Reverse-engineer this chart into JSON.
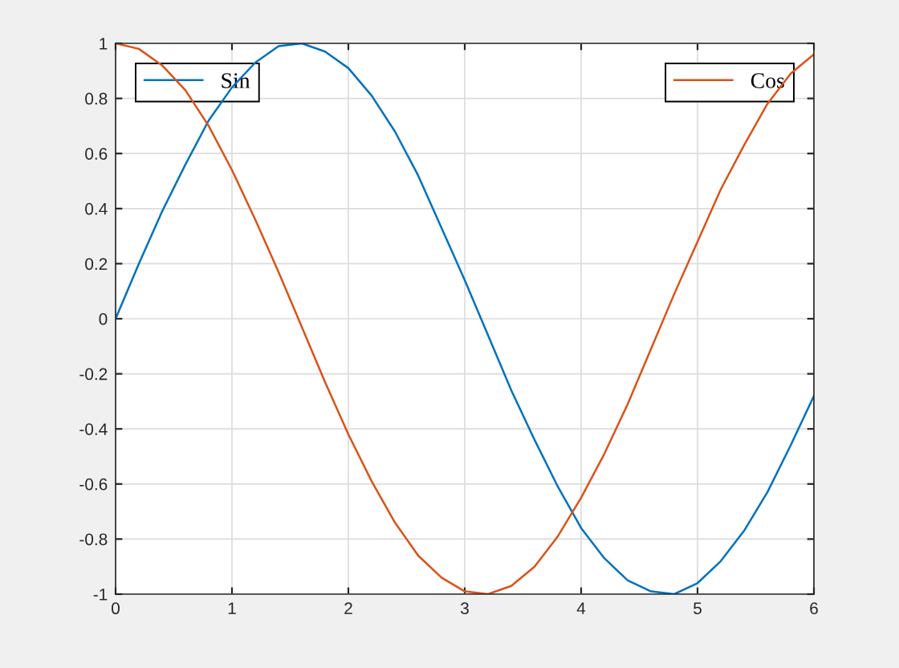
{
  "chart_data": {
    "type": "line",
    "x": [
      0,
      0.2,
      0.4,
      0.6,
      0.8,
      1.0,
      1.2,
      1.4,
      1.6,
      1.8,
      2.0,
      2.2,
      2.4,
      2.6,
      2.8,
      3.0,
      3.2,
      3.4,
      3.6,
      3.8,
      4.0,
      4.2,
      4.4,
      4.6,
      4.8,
      5.0,
      5.2,
      5.4,
      5.6,
      5.8,
      6.0
    ],
    "series": [
      {
        "name": "Sin",
        "color": "#0072bd",
        "values": [
          0,
          0.2,
          0.39,
          0.56,
          0.72,
          0.84,
          0.93,
          0.99,
          1.0,
          0.97,
          0.91,
          0.81,
          0.68,
          0.52,
          0.33,
          0.14,
          -0.06,
          -0.26,
          -0.44,
          -0.61,
          -0.76,
          -0.87,
          -0.95,
          -0.99,
          -1.0,
          -0.96,
          -0.88,
          -0.77,
          -0.63,
          -0.46,
          -0.28
        ]
      },
      {
        "name": "Cos",
        "color": "#d95319",
        "values": [
          1.0,
          0.98,
          0.92,
          0.83,
          0.7,
          0.54,
          0.36,
          0.17,
          -0.03,
          -0.23,
          -0.42,
          -0.59,
          -0.74,
          -0.86,
          -0.94,
          -0.99,
          -1.0,
          -0.97,
          -0.9,
          -0.79,
          -0.65,
          -0.49,
          -0.31,
          -0.11,
          0.09,
          0.28,
          0.47,
          0.63,
          0.78,
          0.89,
          0.96
        ]
      }
    ],
    "xlim": [
      0,
      6
    ],
    "xticks": [
      0,
      1,
      2,
      3,
      4,
      5,
      6
    ],
    "ylim": [
      -1,
      1
    ],
    "yticks": [
      -1,
      {
        "value": -0.8,
        "label": "-0.8"
      },
      {
        "value": -0.6,
        "label": "-0.6"
      },
      {
        "value": -0.4,
        "label": "-0.4"
      },
      {
        "value": -0.2,
        "label": "-0.2"
      },
      0,
      0.2,
      0.4,
      0.6,
      0.8,
      1
    ],
    "grid": true,
    "legend": "top",
    "marker": "none",
    "line_style": "solid"
  }
}
